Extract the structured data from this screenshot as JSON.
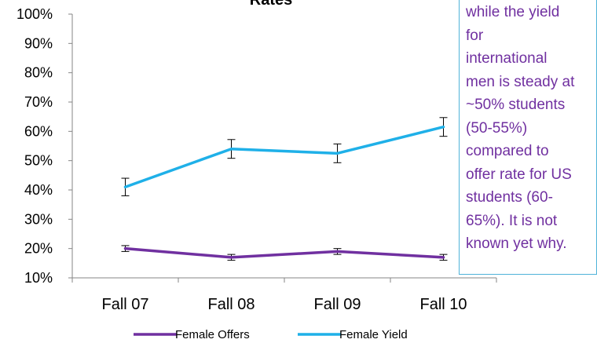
{
  "chart_data": {
    "type": "line",
    "title": "Rates",
    "categories": [
      "Fall 07",
      "Fall 08",
      "Fall 09",
      "Fall 10"
    ],
    "ylim": [
      0.1,
      1.0
    ],
    "yticks": [
      "10%",
      "20%",
      "30%",
      "40%",
      "50%",
      "60%",
      "70%",
      "80%",
      "90%",
      "100%"
    ],
    "yaxis_format": "percent",
    "grid": false,
    "legend_position": "bottom",
    "series": [
      {
        "name": "Female Offers",
        "color": "#7030a0",
        "values": [
          0.2,
          0.17,
          0.19,
          0.17
        ],
        "error": [
          0.01,
          0.01,
          0.01,
          0.01
        ]
      },
      {
        "name": "Female Yield",
        "color": "#1fb0e8",
        "values": [
          0.41,
          0.54,
          0.525,
          0.615
        ],
        "error": [
          0.03,
          0.032,
          0.032,
          0.032
        ]
      }
    ]
  },
  "note": {
    "lines": [
      "while the yield",
      "for",
      "international",
      "men is steady at",
      "~50% students",
      "(50-55%)",
      "compared to",
      "offer rate for US",
      "students (60-",
      "65%). It is not",
      "known yet why."
    ]
  }
}
